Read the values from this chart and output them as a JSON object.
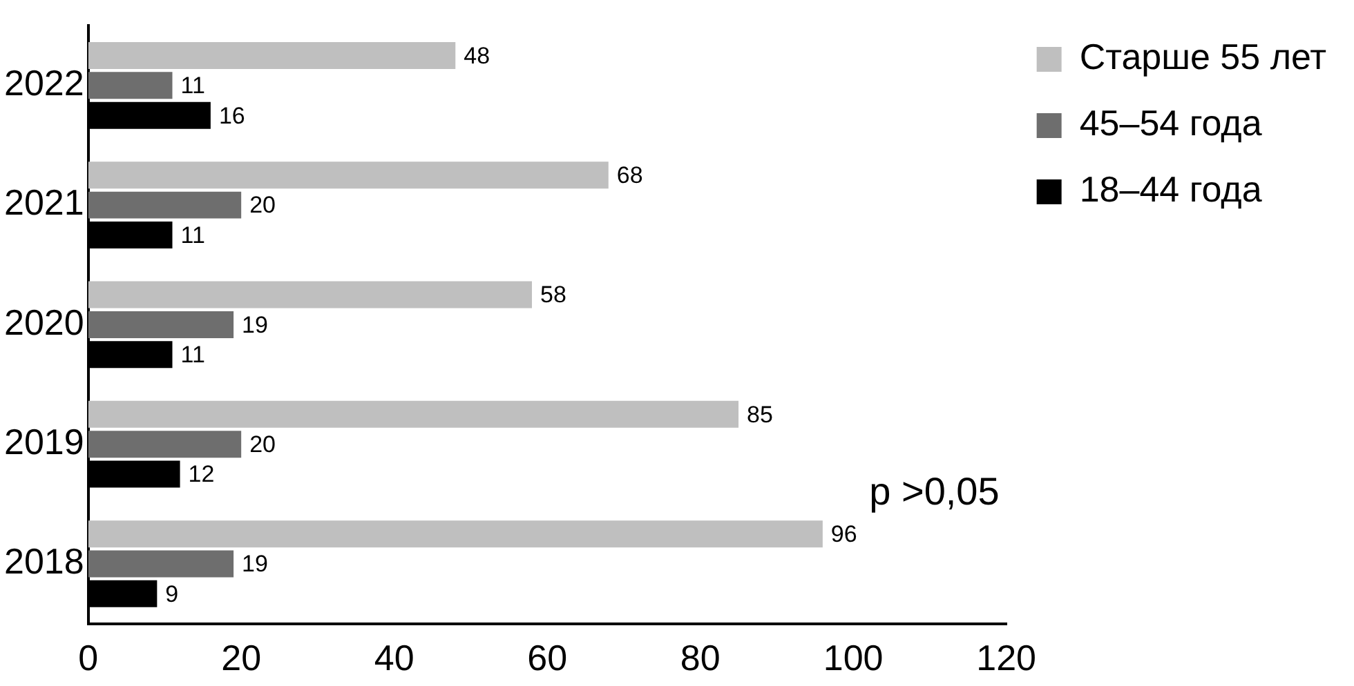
{
  "chart_data": {
    "type": "bar",
    "orientation": "horizontal",
    "categories": [
      "2022",
      "2021",
      "2020",
      "2019",
      "2018"
    ],
    "series": [
      {
        "name": "Старше 55 лет",
        "color": "#bfbfbf",
        "values": [
          48,
          68,
          58,
          85,
          96
        ]
      },
      {
        "name": "45–54 года",
        "color": "#6e6e6e",
        "values": [
          11,
          20,
          19,
          20,
          19
        ]
      },
      {
        "name": "18–44 года",
        "color": "#000000",
        "values": [
          16,
          11,
          11,
          12,
          9
        ]
      }
    ],
    "xlim": [
      0,
      120
    ],
    "xticks": [
      0,
      20,
      40,
      60,
      80,
      100,
      120
    ],
    "grid": false,
    "legend": "top right",
    "data_labels": true,
    "annotations": [
      "p >0,05"
    ]
  }
}
